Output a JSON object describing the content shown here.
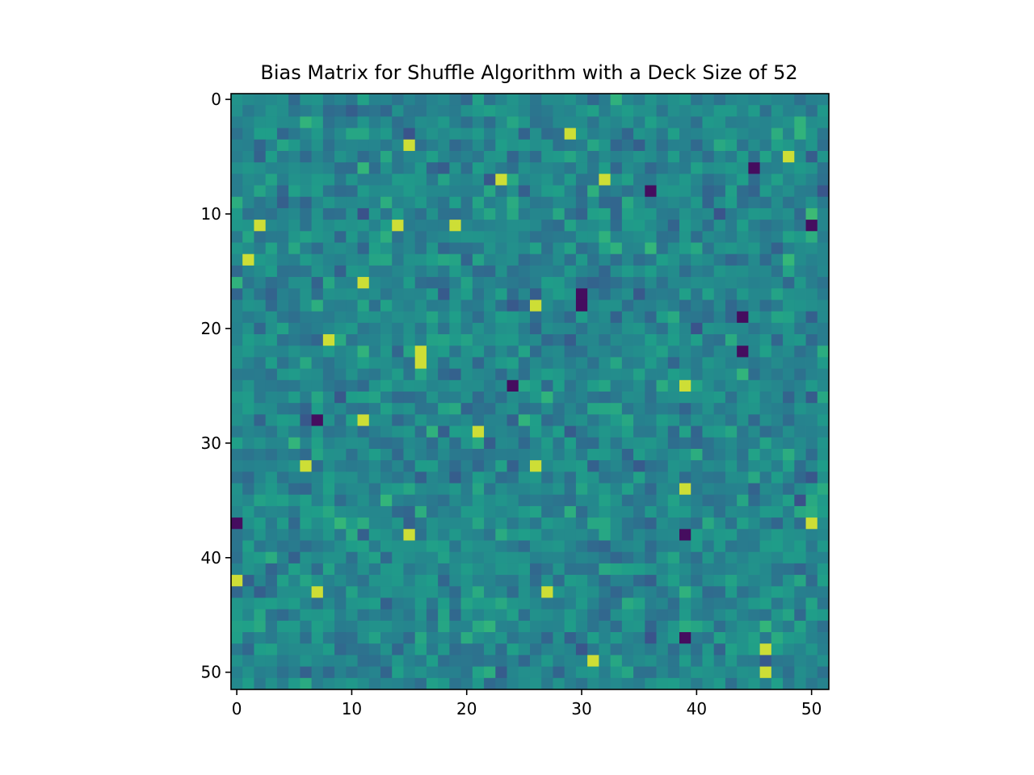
{
  "chart_data": {
    "type": "heatmap",
    "title": "Bias Matrix for Shuffle Algorithm with a Deck Size of 52",
    "xlabel": "",
    "ylabel": "",
    "rows": 52,
    "cols": 52,
    "colormap": "viridis",
    "x_ticks": [
      0,
      10,
      20,
      30,
      40,
      50
    ],
    "y_ticks": [
      0,
      10,
      20,
      30,
      40,
      50
    ],
    "xlim": [
      -0.5,
      51.5
    ],
    "ylim": [
      51.5,
      -0.5
    ],
    "grid": false,
    "legend": "none",
    "values_note_scale": [
      0,
      1
    ],
    "bright_cells": [
      [
        3,
        29
      ],
      [
        4,
        15
      ],
      [
        5,
        48
      ],
      [
        7,
        23
      ],
      [
        7,
        32
      ],
      [
        11,
        2
      ],
      [
        11,
        14
      ],
      [
        11,
        19
      ],
      [
        14,
        1
      ],
      [
        16,
        11
      ],
      [
        18,
        26
      ],
      [
        21,
        8
      ],
      [
        22,
        16
      ],
      [
        23,
        16
      ],
      [
        25,
        39
      ],
      [
        28,
        11
      ],
      [
        29,
        21
      ],
      [
        32,
        6
      ],
      [
        32,
        26
      ],
      [
        34,
        39
      ],
      [
        37,
        50
      ],
      [
        38,
        15
      ],
      [
        42,
        0
      ],
      [
        43,
        7
      ],
      [
        43,
        27
      ],
      [
        48,
        46
      ],
      [
        49,
        31
      ],
      [
        50,
        46
      ]
    ],
    "dark_cells": [
      [
        17,
        30
      ],
      [
        18,
        30
      ],
      [
        19,
        44
      ],
      [
        22,
        44
      ],
      [
        25,
        24
      ],
      [
        28,
        7
      ],
      [
        37,
        0
      ],
      [
        38,
        39
      ],
      [
        6,
        45
      ],
      [
        8,
        36
      ],
      [
        47,
        39
      ],
      [
        11,
        50
      ]
    ]
  }
}
